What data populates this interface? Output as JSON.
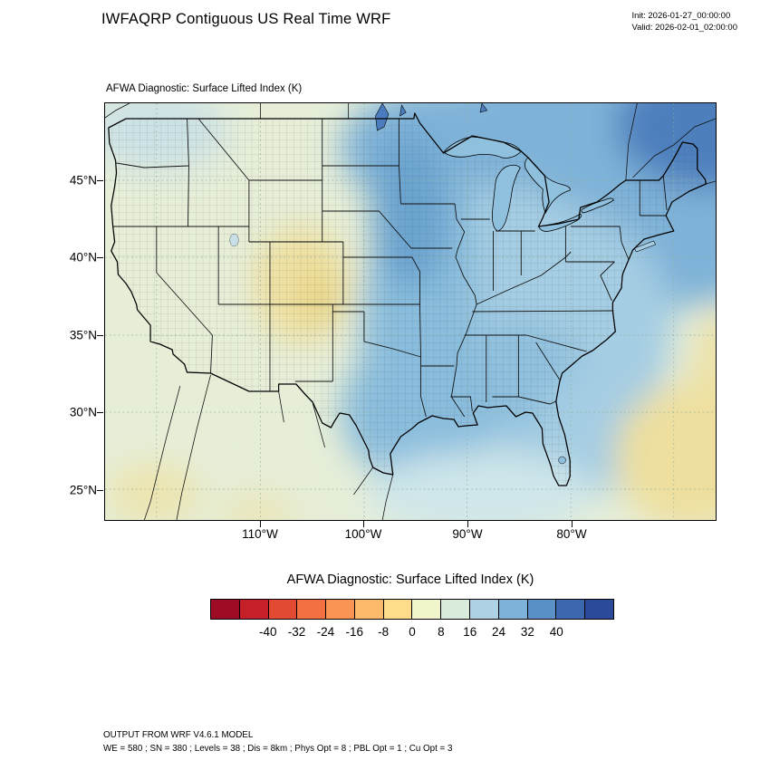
{
  "header": {
    "title": "IWFAQRP Contiguous US Real Time WRF",
    "init_label": "Init: 2026-01-27_00:00:00",
    "valid_label": "Valid: 2026-02-01_02:00:00"
  },
  "map": {
    "subtitle": "AFWA Diagnostic: Surface Lifted Index   (K)"
  },
  "chart_data": {
    "type": "heatmap",
    "title": "AFWA Diagnostic: Surface Lifted Index  (K)",
    "variable": "Surface Lifted Index",
    "units": "K",
    "region": "Contiguous US",
    "colorbar": {
      "range": [
        -56,
        56
      ],
      "interval": 8,
      "tick_values": [
        -40,
        -32,
        -24,
        -16,
        -8,
        0,
        8,
        16,
        24,
        32,
        40
      ],
      "tick_labels": [
        "-40",
        "-32",
        "-24",
        "-16",
        "-8",
        "0",
        "8",
        "16",
        "24",
        "32",
        "40"
      ],
      "colors": [
        "#9e0b25",
        "#c51f29",
        "#e34933",
        "#f27041",
        "#f99455",
        "#fdba6a",
        "#fedc8a",
        "#f2f4cc",
        "#d9ecdc",
        "#aed2e4",
        "#7fb2d8",
        "#5b90c6",
        "#3c68b0",
        "#2b4a9a"
      ]
    },
    "x_axis": {
      "ticks": [
        "110°W",
        "100°W",
        "90°W",
        "80°W"
      ],
      "tick_lons": [
        -110,
        -100,
        -90,
        -80
      ]
    },
    "y_axis": {
      "ticks": [
        "45°N",
        "40°N",
        "35°N",
        "30°N",
        "25°N"
      ],
      "tick_lats": [
        45,
        40,
        35,
        30,
        25
      ]
    },
    "approx_field_values_K": [
      {
        "region": "Pacific coast / California",
        "lifted_index": 4
      },
      {
        "region": "Intermountain West (UT/CO four-corners yellow patch)",
        "lifted_index": -4
      },
      {
        "region": "Northern Plains (Dakotas / Nebraska)",
        "lifted_index": 26
      },
      {
        "region": "Central and Southern Plains (KS/OK/TX)",
        "lifted_index": 22
      },
      {
        "region": "Midwest / Great Lakes",
        "lifted_index": 18
      },
      {
        "region": "Southeast US / Gulf Coast states",
        "lifted_index": 18
      },
      {
        "region": "Northeast US",
        "lifted_index": 14
      },
      {
        "region": "Southeast Canada (upper-right corner)",
        "lifted_index": 34
      },
      {
        "region": "Gulf of Mexico",
        "lifted_index": 10
      },
      {
        "region": "Subtropical Atlantic (lower-right corner)",
        "lifted_index": -4
      },
      {
        "region": "Offshore Pacific (lower-left corner)",
        "lifted_index": -2
      }
    ]
  },
  "footer": {
    "line1": "OUTPUT FROM WRF V4.6.1 MODEL",
    "line2": "WE = 580 ; SN = 380 ; Levels = 38 ; Dis = 8km ; Phys Opt = 8 ; PBL Opt = 1 ; Cu Opt = 3"
  }
}
